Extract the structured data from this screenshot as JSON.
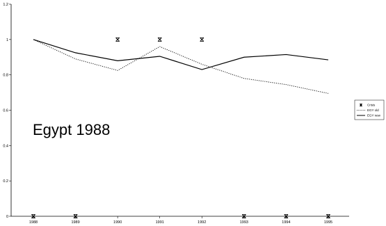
{
  "chart_data": {
    "type": "line",
    "title": "",
    "xlabel": "",
    "ylabel": "",
    "categories": [
      "1988",
      "1989",
      "1990",
      "1991",
      "1992",
      "1993",
      "1994",
      "1995"
    ],
    "ylim": [
      0,
      1.2
    ],
    "yticks": [
      "0",
      "0.2",
      "0.4",
      "0.6",
      "0.8",
      "1",
      "1.2"
    ],
    "grid": false,
    "annotation": "Egypt 1988",
    "series": [
      {
        "name": "Crisis",
        "style": "markers-x",
        "color": "#000000",
        "values": [
          0,
          0,
          1,
          1,
          1,
          0,
          0,
          0
        ]
      },
      {
        "name": "EGY old",
        "style": "dotted",
        "color": "#000000",
        "values": [
          1.0,
          0.89,
          0.825,
          0.96,
          0.86,
          0.78,
          0.745,
          0.695
        ]
      },
      {
        "name": "EGY new",
        "style": "solid",
        "color": "#000000",
        "values": [
          1.0,
          0.925,
          0.88,
          0.905,
          0.83,
          0.9,
          0.915,
          0.885
        ]
      }
    ],
    "legend_placement": "right"
  }
}
